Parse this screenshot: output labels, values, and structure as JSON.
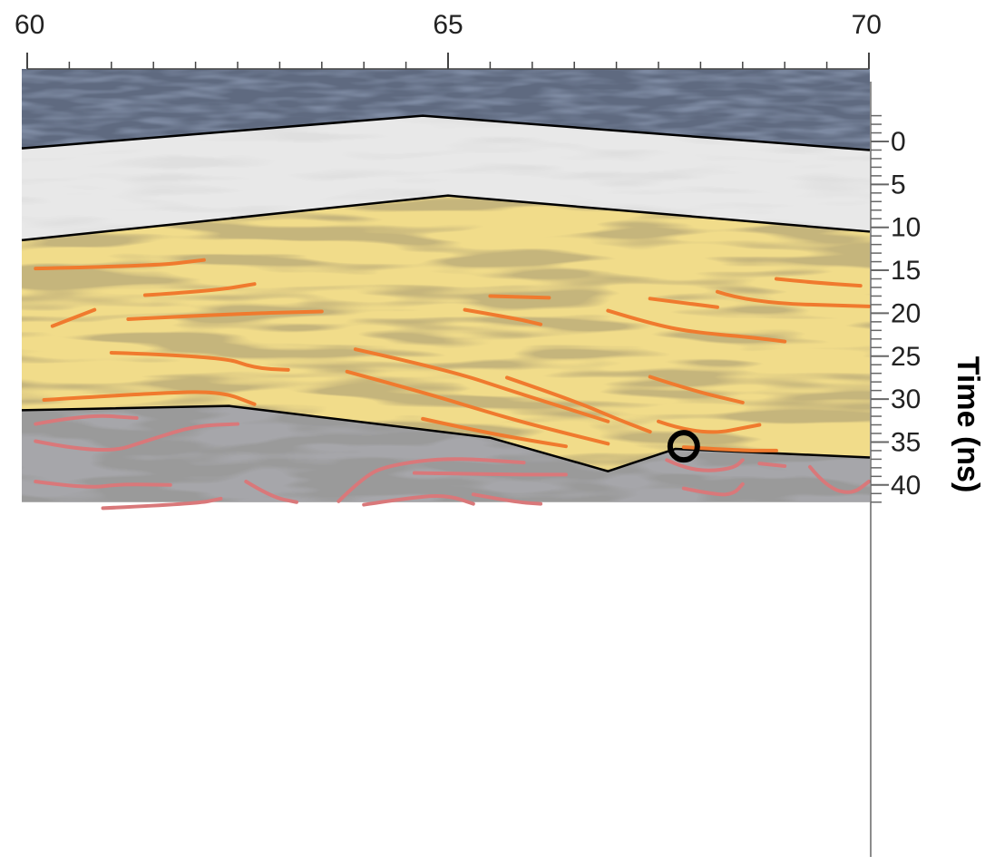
{
  "chart_data": {
    "type": "radargram",
    "x_ticks": [
      "60",
      "65",
      "70"
    ],
    "xlim": [
      60,
      70
    ],
    "ylabel": "Time (ns)",
    "y_ticks": [
      "0",
      "5",
      "10",
      "15",
      "20",
      "25",
      "30",
      "35",
      "40"
    ],
    "ylim": [
      -3,
      42
    ],
    "units": [
      {
        "name": "upper",
        "color": "#e8e8e8",
        "top_boundary": [
          [
            60,
            0.8
          ],
          [
            64.7,
            -3
          ],
          [
            70,
            1
          ]
        ],
        "bottom_boundary": [
          [
            60,
            11.5
          ],
          [
            65,
            6.3
          ],
          [
            70,
            10.5
          ]
        ]
      },
      {
        "name": "middle",
        "color": "#f1dc8a",
        "top_boundary": [
          [
            60,
            11.5
          ],
          [
            65,
            6.3
          ],
          [
            70,
            10.5
          ]
        ],
        "bottom_boundary": [
          [
            60,
            31.3
          ],
          [
            62.4,
            30.8
          ],
          [
            65.5,
            34.5
          ],
          [
            66.9,
            38.4
          ],
          [
            67.7,
            35.8
          ],
          [
            70,
            36.8
          ]
        ]
      },
      {
        "name": "lower",
        "color": "#9a9a9a",
        "top_boundary": [
          [
            60,
            31.3
          ],
          [
            62.4,
            30.8
          ],
          [
            65.5,
            34.5
          ],
          [
            66.9,
            38.4
          ],
          [
            67.7,
            35.8
          ],
          [
            70,
            36.8
          ]
        ],
        "bottom_boundary": [
          [
            60,
            42
          ],
          [
            70,
            42
          ]
        ]
      }
    ],
    "reflectors_orange": [
      [
        [
          60.1,
          14.8
        ],
        [
          61.5,
          14.5
        ],
        [
          62.1,
          13.8
        ]
      ],
      [
        [
          61.4,
          17.9
        ],
        [
          62.2,
          17.4
        ],
        [
          62.7,
          16.6
        ]
      ],
      [
        [
          60.3,
          21.5
        ],
        [
          60.8,
          19.6
        ]
      ],
      [
        [
          61.2,
          20.7
        ],
        [
          62.4,
          20.1
        ],
        [
          63.5,
          19.8
        ]
      ],
      [
        [
          61.0,
          24.6
        ],
        [
          62.3,
          25.0
        ],
        [
          62.7,
          26.4
        ],
        [
          63.1,
          26.6
        ]
      ],
      [
        [
          60.2,
          30.1
        ],
        [
          61.5,
          29.3
        ],
        [
          62.3,
          29.1
        ],
        [
          62.7,
          30.6
        ]
      ],
      [
        [
          63.9,
          24.2
        ],
        [
          65.0,
          26.6
        ],
        [
          65.8,
          29.2
        ],
        [
          66.9,
          32.6
        ]
      ],
      [
        [
          63.8,
          26.8
        ],
        [
          64.7,
          29.2
        ],
        [
          65.4,
          31.3
        ],
        [
          66.0,
          33.0
        ],
        [
          66.9,
          35.2
        ]
      ],
      [
        [
          64.7,
          32.3
        ],
        [
          65.3,
          33.6
        ],
        [
          65.9,
          34.7
        ],
        [
          66.4,
          35.5
        ]
      ],
      [
        [
          65.7,
          27.5
        ],
        [
          66.5,
          30.2
        ],
        [
          67.0,
          32.3
        ],
        [
          67.4,
          33.8
        ]
      ],
      [
        [
          65.5,
          18.0
        ],
        [
          66.2,
          18.2
        ]
      ],
      [
        [
          65.2,
          19.6
        ],
        [
          65.8,
          20.6
        ],
        [
          66.1,
          21.3
        ]
      ],
      [
        [
          66.9,
          19.7
        ],
        [
          67.4,
          21.2
        ],
        [
          67.9,
          22.2
        ],
        [
          68.6,
          22.8
        ],
        [
          69.0,
          23.3
        ]
      ],
      [
        [
          67.4,
          18.3
        ],
        [
          68.2,
          19.3
        ]
      ],
      [
        [
          68.2,
          17.5
        ],
        [
          68.6,
          18.8
        ],
        [
          70.0,
          19.2
        ]
      ],
      [
        [
          68.9,
          16.0
        ],
        [
          69.3,
          16.4
        ],
        [
          69.9,
          16.8
        ]
      ],
      [
        [
          67.4,
          27.4
        ],
        [
          67.9,
          29.0
        ],
        [
          68.5,
          30.4
        ]
      ],
      [
        [
          67.5,
          32.6
        ],
        [
          68.0,
          34.3
        ],
        [
          68.7,
          33.0
        ]
      ],
      [
        [
          67.8,
          35.6
        ],
        [
          68.5,
          36.0
        ],
        [
          68.9,
          36.0
        ]
      ]
    ],
    "reflectors_pink": [
      [
        [
          60.1,
          32.9
        ],
        [
          60.7,
          31.8
        ],
        [
          61.3,
          32.2
        ]
      ],
      [
        [
          60.1,
          34.9
        ],
        [
          60.9,
          36.5
        ],
        [
          61.5,
          34.6
        ],
        [
          62.0,
          33.1
        ],
        [
          62.5,
          32.9
        ]
      ],
      [
        [
          60.1,
          39.6
        ],
        [
          60.7,
          40.4
        ],
        [
          61.1,
          39.9
        ],
        [
          61.7,
          40.0
        ]
      ],
      [
        [
          60.9,
          42.7
        ],
        [
          62.0,
          42.2
        ],
        [
          62.3,
          41.6
        ]
      ],
      [
        [
          62.6,
          39.6
        ],
        [
          62.9,
          41.4
        ],
        [
          63.2,
          42.0
        ]
      ],
      [
        [
          63.7,
          41.9
        ],
        [
          64.0,
          39.0
        ],
        [
          64.3,
          37.7
        ],
        [
          65.0,
          36.8
        ],
        [
          65.9,
          37.4
        ]
      ],
      [
        [
          64.6,
          38.6
        ],
        [
          65.8,
          38.8
        ],
        [
          66.4,
          38.8
        ]
      ],
      [
        [
          64.0,
          42.3
        ],
        [
          64.6,
          41.4
        ],
        [
          65.0,
          41.2
        ],
        [
          65.3,
          42.2
        ]
      ],
      [
        [
          65.3,
          41.1
        ],
        [
          65.8,
          42.0
        ],
        [
          66.1,
          42.2
        ]
      ],
      [
        [
          67.6,
          37.1
        ],
        [
          67.8,
          38.0
        ],
        [
          68.1,
          38.4
        ],
        [
          68.4,
          38.0
        ],
        [
          68.5,
          37.1
        ]
      ],
      [
        [
          67.8,
          40.4
        ],
        [
          68.2,
          41.2
        ],
        [
          68.4,
          41.0
        ],
        [
          68.5,
          39.9
        ]
      ],
      [
        [
          68.7,
          37.5
        ],
        [
          69.0,
          37.8
        ]
      ],
      [
        [
          69.3,
          37.9
        ],
        [
          69.5,
          40.3
        ],
        [
          69.8,
          41.1
        ],
        [
          70.0,
          39.6
        ]
      ]
    ],
    "marker": {
      "shape": "circle",
      "x": 67.8,
      "y": 35.5
    }
  }
}
